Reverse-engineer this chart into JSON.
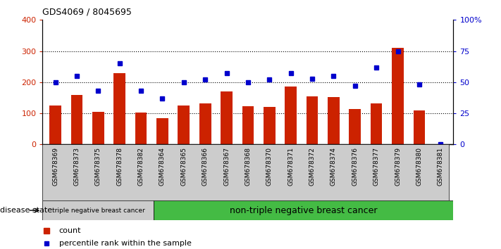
{
  "title": "GDS4069 / 8045695",
  "samples": [
    "GSM678369",
    "GSM678373",
    "GSM678375",
    "GSM678378",
    "GSM678382",
    "GSM678364",
    "GSM678365",
    "GSM678366",
    "GSM678367",
    "GSM678368",
    "GSM678370",
    "GSM678371",
    "GSM678372",
    "GSM678374",
    "GSM678376",
    "GSM678377",
    "GSM678379",
    "GSM678380",
    "GSM678381"
  ],
  "counts": [
    125,
    160,
    105,
    228,
    102,
    85,
    125,
    132,
    170,
    123,
    120,
    185,
    155,
    152,
    113,
    132,
    310,
    110,
    0
  ],
  "percentiles": [
    50,
    55,
    43,
    65,
    43,
    37,
    50,
    52,
    57,
    50,
    52,
    57,
    53,
    55,
    47,
    62,
    75,
    48,
    0
  ],
  "group1_count": 5,
  "group1_label": "triple negative breast cancer",
  "group2_label": "non-triple negative breast cancer",
  "bar_color": "#cc2200",
  "dot_color": "#0000cc",
  "ylim_left": [
    0,
    400
  ],
  "ylim_right": [
    0,
    100
  ],
  "yticks_left": [
    0,
    100,
    200,
    300,
    400
  ],
  "yticks_right": [
    0,
    25,
    50,
    75,
    100
  ],
  "ytick_labels_right": [
    "0",
    "25",
    "50",
    "75",
    "100%"
  ],
  "grid_values": [
    100,
    200,
    300
  ],
  "legend_count_label": "count",
  "legend_pct_label": "percentile rank within the sample",
  "disease_state_label": "disease state",
  "background_color": "#ffffff",
  "plot_bg_color": "#ffffff",
  "group1_bg": "#cccccc",
  "group2_bg": "#44bb44",
  "bar_width": 0.55
}
